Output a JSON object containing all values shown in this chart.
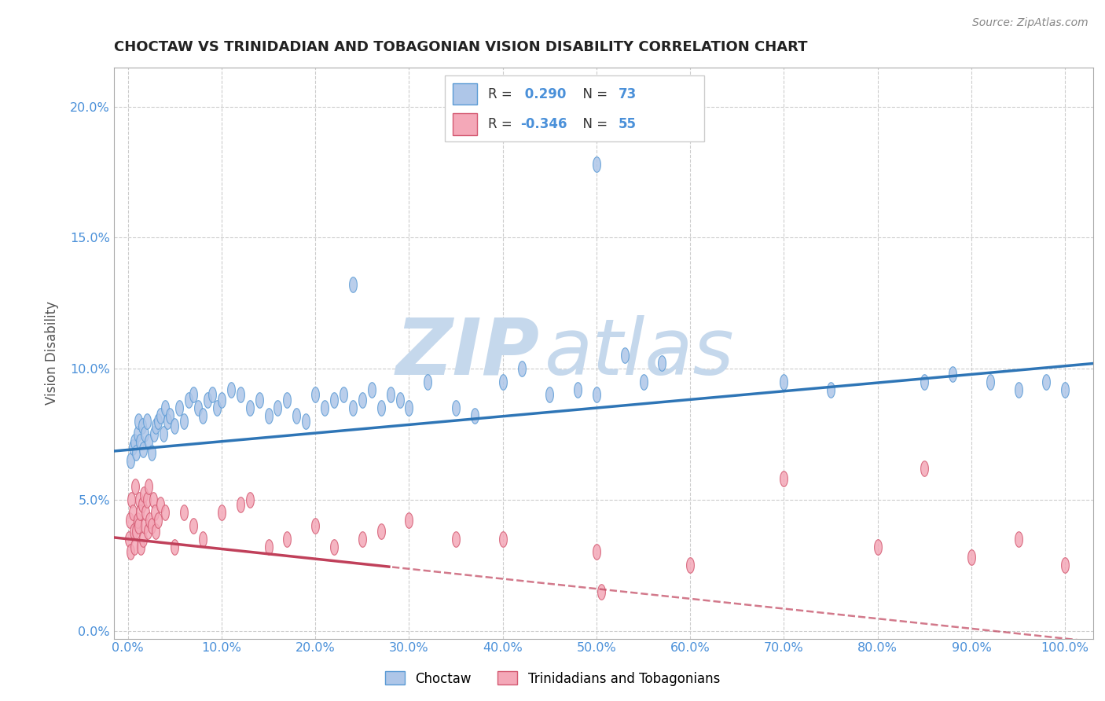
{
  "title": "CHOCTAW VS TRINIDADIAN AND TOBAGONIAN VISION DISABILITY CORRELATION CHART",
  "source": "Source: ZipAtlas.com",
  "xlabel_ticks": [
    "0.0%",
    "10.0%",
    "20.0%",
    "30.0%",
    "40.0%",
    "50.0%",
    "60.0%",
    "70.0%",
    "80.0%",
    "90.0%",
    "100.0%"
  ],
  "xlabel_vals": [
    0,
    10,
    20,
    30,
    40,
    50,
    60,
    70,
    80,
    90,
    100
  ],
  "ylabel": "Vision Disability",
  "ylabel_ticks": [
    "0.0%",
    "5.0%",
    "10.0%",
    "15.0%",
    "20.0%"
  ],
  "ylabel_vals": [
    0,
    5,
    10,
    15,
    20
  ],
  "ylim": [
    -0.3,
    21.5
  ],
  "xlim": [
    -1.5,
    103
  ],
  "choctaw_R": 0.29,
  "choctaw_N": 73,
  "trini_R": -0.346,
  "trini_N": 55,
  "choctaw_color": "#aec6e8",
  "choctaw_edge_color": "#5b9bd5",
  "choctaw_line_color": "#2e75b6",
  "trini_color": "#f4a8b8",
  "trini_edge_color": "#d45a72",
  "trini_line_color": "#c0405a",
  "watermark_color": "#c5d8ec",
  "legend_label_choctaw": "Choctaw",
  "legend_label_trini": "Trinidadians and Tobagonians",
  "background_color": "#ffffff",
  "grid_color": "#cccccc",
  "title_color": "#222222",
  "axis_tick_color": "#4a90d9",
  "legend_R_color": "#4a90d9",
  "choctaw_line_intercept": 6.9,
  "choctaw_line_slope": 0.032,
  "trini_line_intercept": 3.5,
  "trini_line_slope": -0.038,
  "trini_dash_start": 28,
  "choctaw_x": [
    0.3,
    0.5,
    0.7,
    0.9,
    1.0,
    1.1,
    1.3,
    1.5,
    1.6,
    1.8,
    2.0,
    2.2,
    2.5,
    2.8,
    3.0,
    3.2,
    3.5,
    3.8,
    4.0,
    4.2,
    4.5,
    5.0,
    5.5,
    6.0,
    6.5,
    7.0,
    7.5,
    8.0,
    8.5,
    9.0,
    9.5,
    10.0,
    11.0,
    12.0,
    13.0,
    14.0,
    15.0,
    16.0,
    17.0,
    18.0,
    19.0,
    20.0,
    21.0,
    22.0,
    23.0,
    24.0,
    25.0,
    26.0,
    27.0,
    28.0,
    29.0,
    30.0,
    32.0,
    35.0,
    37.0,
    40.0,
    42.0,
    45.0,
    48.0,
    50.0,
    53.0,
    55.0,
    57.0,
    70.0,
    75.0,
    85.0,
    88.0,
    92.0,
    95.0,
    98.0,
    100.0,
    50.0,
    24.0
  ],
  "choctaw_y": [
    6.5,
    7.0,
    7.2,
    6.8,
    7.5,
    8.0,
    7.2,
    7.8,
    6.9,
    7.5,
    8.0,
    7.2,
    6.8,
    7.5,
    7.8,
    8.0,
    8.2,
    7.5,
    8.5,
    8.0,
    8.2,
    7.8,
    8.5,
    8.0,
    8.8,
    9.0,
    8.5,
    8.2,
    8.8,
    9.0,
    8.5,
    8.8,
    9.2,
    9.0,
    8.5,
    8.8,
    8.2,
    8.5,
    8.8,
    8.2,
    8.0,
    9.0,
    8.5,
    8.8,
    9.0,
    8.5,
    8.8,
    9.2,
    8.5,
    9.0,
    8.8,
    8.5,
    9.5,
    8.5,
    8.2,
    9.5,
    10.0,
    9.0,
    9.2,
    9.0,
    10.5,
    9.5,
    10.2,
    9.5,
    9.2,
    9.5,
    9.8,
    9.5,
    9.2,
    9.5,
    9.2,
    17.8,
    13.2
  ],
  "trini_x": [
    0.1,
    0.2,
    0.3,
    0.4,
    0.5,
    0.6,
    0.7,
    0.8,
    0.9,
    1.0,
    1.1,
    1.2,
    1.3,
    1.4,
    1.5,
    1.6,
    1.7,
    1.8,
    1.9,
    2.0,
    2.1,
    2.2,
    2.3,
    2.5,
    2.7,
    2.9,
    3.0,
    3.2,
    3.5,
    4.0,
    5.0,
    6.0,
    7.0,
    8.0,
    10.0,
    12.0,
    15.0,
    17.0,
    20.0,
    22.0,
    25.0,
    27.0,
    30.0,
    35.0,
    40.0,
    50.0,
    60.0,
    70.0,
    80.0,
    85.0,
    90.0,
    95.0,
    100.0,
    13.0,
    50.5
  ],
  "trini_y": [
    3.5,
    4.2,
    3.0,
    5.0,
    4.5,
    3.8,
    3.2,
    5.5,
    3.8,
    4.2,
    4.0,
    5.0,
    4.5,
    3.2,
    4.8,
    3.5,
    5.2,
    4.0,
    4.5,
    5.0,
    3.8,
    5.5,
    4.2,
    4.0,
    5.0,
    4.5,
    3.8,
    4.2,
    4.8,
    4.5,
    3.2,
    4.5,
    4.0,
    3.5,
    4.5,
    4.8,
    3.2,
    3.5,
    4.0,
    3.2,
    3.5,
    3.8,
    4.2,
    3.5,
    3.5,
    3.0,
    2.5,
    5.8,
    3.2,
    6.2,
    2.8,
    3.5,
    2.5,
    5.0,
    1.5
  ]
}
